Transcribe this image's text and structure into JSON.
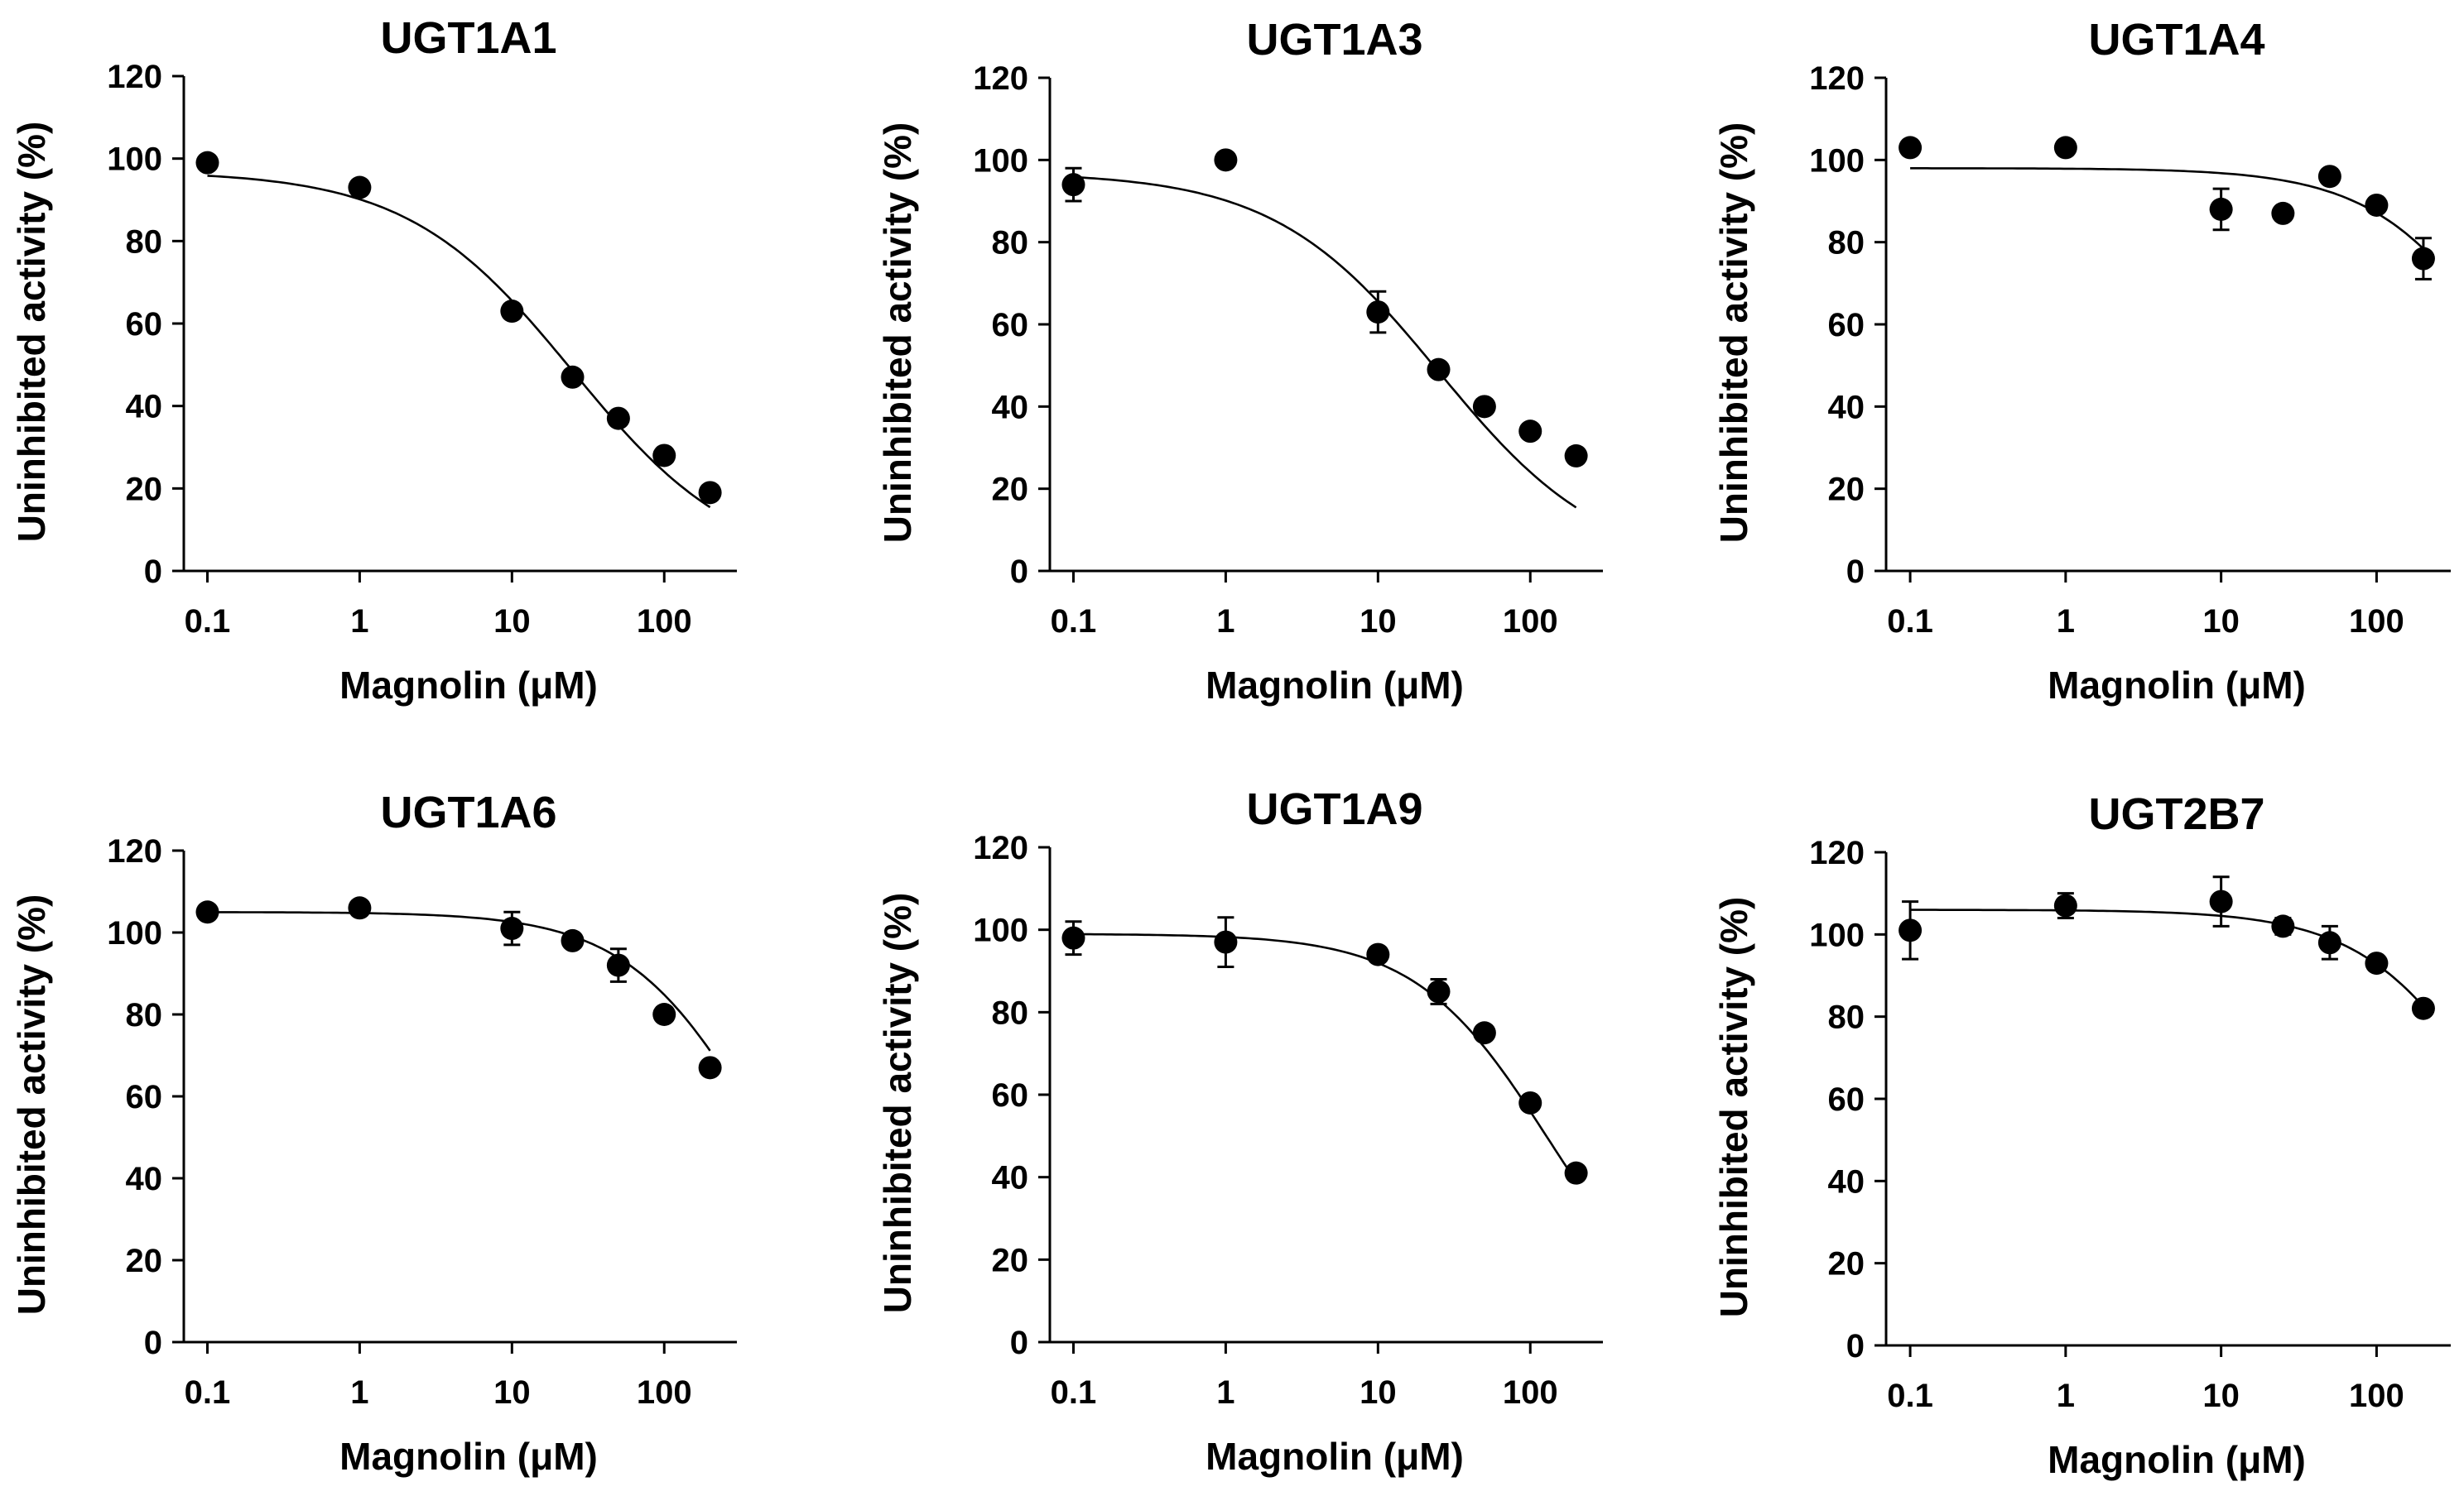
{
  "figure": {
    "colors": {
      "background": "#ffffff",
      "ink": "#000000"
    }
  },
  "chart_data": [
    {
      "type": "scatter",
      "title": "UGT1A1",
      "xlabel": "Magnolin (μM)",
      "ylabel": "Uninhibited activity (%)",
      "xscale": "log",
      "xlim": [
        0.07,
        300
      ],
      "ylim": [
        0,
        120
      ],
      "xticks": [
        0.1,
        1,
        10,
        100
      ],
      "xtick_labels": [
        "0.1",
        "1",
        "10",
        "100"
      ],
      "yticks": [
        0,
        20,
        40,
        60,
        80,
        100,
        120
      ],
      "ytick_labels": [
        "0",
        "20",
        "40",
        "60",
        "80",
        "100",
        "120"
      ],
      "series": [
        {
          "name": "Magnolin",
          "x": [
            0.1,
            1,
            10,
            25,
            50,
            100,
            200
          ],
          "y": [
            99,
            93,
            63,
            47,
            37,
            28,
            19
          ],
          "err": [
            0,
            0,
            1.5,
            0,
            0,
            0,
            0
          ]
        }
      ],
      "fit": {
        "top": 97,
        "bottom": 0,
        "ic50": 25,
        "hill": 0.8,
        "x_from": 0.1,
        "x_to": 200
      }
    },
    {
      "type": "scatter",
      "title": "UGT1A3",
      "xlabel": "Magnolin (μM)",
      "ylabel": "Uninhibited activity (%)",
      "xscale": "log",
      "xlim": [
        0.07,
        300
      ],
      "ylim": [
        0,
        120
      ],
      "xticks": [
        0.1,
        1,
        10,
        100
      ],
      "xtick_labels": [
        "0.1",
        "1",
        "10",
        "100"
      ],
      "yticks": [
        0,
        20,
        40,
        60,
        80,
        100,
        120
      ],
      "ytick_labels": [
        "0",
        "20",
        "40",
        "60",
        "80",
        "100",
        "120"
      ],
      "series": [
        {
          "name": "Magnolin",
          "x": [
            0.1,
            1,
            10,
            25,
            50,
            100,
            200
          ],
          "y": [
            94,
            100,
            63,
            49,
            40,
            34,
            28
          ],
          "err": [
            4,
            0,
            5,
            0,
            0,
            0,
            0
          ]
        }
      ],
      "fit": {
        "top": 97,
        "bottom": 0,
        "ic50": 25,
        "hill": 0.8,
        "x_from": 0.1,
        "x_to": 200
      }
    },
    {
      "type": "scatter",
      "title": "UGT1A4",
      "xlabel": "Magnolin (μM)",
      "ylabel": "Uninhibited activity (%)",
      "xscale": "log",
      "xlim": [
        0.07,
        300
      ],
      "ylim": [
        0,
        120
      ],
      "xticks": [
        0.1,
        1,
        10,
        100
      ],
      "xtick_labels": [
        "0.1",
        "1",
        "10",
        "100"
      ],
      "yticks": [
        0,
        20,
        40,
        60,
        80,
        100,
        120
      ],
      "ytick_labels": [
        "0",
        "20",
        "40",
        "60",
        "80",
        "100",
        "120"
      ],
      "series": [
        {
          "name": "Magnolin",
          "x": [
            0.1,
            1,
            10,
            25,
            50,
            100,
            200
          ],
          "y": [
            103,
            103,
            88,
            87,
            96,
            89,
            76
          ],
          "err": [
            0,
            0,
            5,
            0,
            0,
            0,
            5
          ]
        }
      ],
      "fit": {
        "top": 98,
        "bottom": 0,
        "ic50": 800,
        "hill": 1.0,
        "x_from": 0.1,
        "x_to": 200
      }
    },
    {
      "type": "scatter",
      "title": "UGT1A6",
      "xlabel": "Magnolin (μM)",
      "ylabel": "Uninhibited activity (%)",
      "xscale": "log",
      "xlim": [
        0.07,
        300
      ],
      "ylim": [
        0,
        120
      ],
      "xticks": [
        0.1,
        1,
        10,
        100
      ],
      "xtick_labels": [
        "0.1",
        "1",
        "10",
        "100"
      ],
      "yticks": [
        0,
        20,
        40,
        60,
        80,
        100,
        120
      ],
      "ytick_labels": [
        "0",
        "20",
        "40",
        "60",
        "80",
        "100",
        "120"
      ],
      "series": [
        {
          "name": "Magnolin",
          "x": [
            0.1,
            1,
            10,
            25,
            50,
            100,
            200
          ],
          "y": [
            105,
            106,
            101,
            98,
            92,
            80,
            67
          ],
          "err": [
            0,
            0,
            4,
            0,
            4,
            0,
            0
          ]
        }
      ],
      "fit": {
        "top": 105,
        "bottom": 0,
        "ic50": 420,
        "hill": 1.0,
        "x_from": 0.1,
        "x_to": 200
      }
    },
    {
      "type": "scatter",
      "title": "UGT1A9",
      "xlabel": "Magnolin (μM)",
      "ylabel": "Uninhibited activity (%)",
      "xscale": "log",
      "xlim": [
        0.07,
        300
      ],
      "ylim": [
        0,
        120
      ],
      "xticks": [
        0.1,
        1,
        10,
        100
      ],
      "xtick_labels": [
        "0.1",
        "1",
        "10",
        "100"
      ],
      "yticks": [
        0,
        20,
        40,
        60,
        80,
        100,
        120
      ],
      "ytick_labels": [
        "0",
        "20",
        "40",
        "60",
        "80",
        "100",
        "120"
      ],
      "series": [
        {
          "name": "Magnolin",
          "x": [
            0.1,
            1,
            10,
            25,
            50,
            100,
            200
          ],
          "y": [
            98,
            97,
            94,
            85,
            75,
            58,
            41
          ],
          "err": [
            4,
            6,
            0,
            3,
            0,
            0,
            0
          ]
        }
      ],
      "fit": {
        "top": 99,
        "bottom": 0,
        "ic50": 130,
        "hill": 1.0,
        "x_from": 0.1,
        "x_to": 200
      }
    },
    {
      "type": "scatter",
      "title": "UGT2B7",
      "xlabel": "Magnolin (μM)",
      "ylabel": "Uninhibited activity (%)",
      "xscale": "log",
      "xlim": [
        0.07,
        300
      ],
      "ylim": [
        0,
        120
      ],
      "xticks": [
        0.1,
        1,
        10,
        100
      ],
      "xtick_labels": [
        "0.1",
        "1",
        "10",
        "100"
      ],
      "yticks": [
        0,
        20,
        40,
        60,
        80,
        100,
        120
      ],
      "ytick_labels": [
        "0",
        "20",
        "40",
        "60",
        "80",
        "100",
        "120"
      ],
      "series": [
        {
          "name": "Magnolin",
          "x": [
            0.1,
            1,
            10,
            25,
            50,
            100,
            200
          ],
          "y": [
            101,
            107,
            108,
            102,
            98,
            93,
            82
          ],
          "err": [
            7,
            3,
            6,
            2,
            4,
            0,
            0
          ]
        }
      ],
      "fit": {
        "top": 106,
        "bottom": 0,
        "ic50": 700,
        "hill": 1.0,
        "x_from": 0.1,
        "x_to": 200
      }
    }
  ]
}
